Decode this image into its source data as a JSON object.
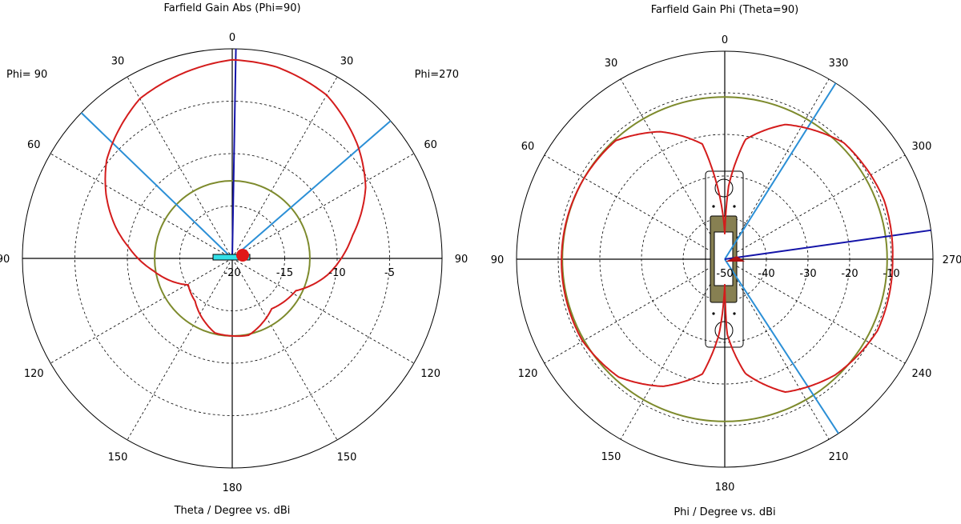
{
  "colors": {
    "gain_curve": "#d41c1c",
    "reference_circle": "#7d8a2c",
    "main_lobe": "#1414a8",
    "beamwidth_lines": "#2b8fd6",
    "grid": "#000000",
    "device_body": "#878052"
  },
  "chart_data": [
    {
      "type": "polar-line",
      "title": "Farfield Gain Abs (Phi=90)",
      "xlabel": "Theta / Degree vs. dBi",
      "side_labels": {
        "left": "Phi= 90",
        "right": "Phi=270"
      },
      "angle_unit": "degree",
      "angle_labels_left": [
        "0",
        "30",
        "60",
        "90",
        "120",
        "150",
        "180"
      ],
      "angle_labels_right": [
        "30",
        "60",
        "90",
        "120",
        "150"
      ],
      "radial_ticks": [
        "-20",
        "-15",
        "-10",
        "-5"
      ],
      "rlim": [
        -20,
        0
      ],
      "grid": true,
      "series": [
        {
          "side": "Phi=90",
          "points": [
            [
              0,
              -1.05
            ],
            [
              30,
              -2.4
            ],
            [
              52,
              -4.8
            ],
            [
              63,
              -6.5
            ],
            [
              75,
              -8.5
            ],
            [
              84,
              -10.1
            ],
            [
              99,
              -12.4
            ],
            [
              121,
              -15.1
            ],
            [
              139,
              -14.6
            ],
            [
              167,
              -12.7
            ],
            [
              180,
              -12.6
            ]
          ]
        },
        {
          "side": "Phi=270",
          "points": [
            [
              0,
              -1.05
            ],
            [
              13,
              -1.25
            ],
            [
              30,
              -2.0
            ],
            [
              48,
              -3.9
            ],
            [
              62,
              -5.6
            ],
            [
              79,
              -8.3
            ],
            [
              100,
              -10.8
            ],
            [
              117,
              -13.2
            ],
            [
              142,
              -13.9
            ],
            [
              168,
              -12.5
            ],
            [
              180,
              -12.6
            ]
          ]
        }
      ],
      "reference_circle_dbi": -12.6,
      "main_lobe_direction_deg": 1,
      "beamwidth_directions_deg": {
        "phi90_side": 46,
        "phi270_side": 49
      }
    },
    {
      "type": "polar-line",
      "title": "Farfield Gain Phi (Theta=90)",
      "xlabel": "Phi / Degree vs. dBi",
      "angle_unit": "degree",
      "angle_labels": [
        "0",
        "30",
        "60",
        "90",
        "120",
        "150",
        "180",
        "210",
        "240",
        "270",
        "300",
        "330"
      ],
      "radial_ticks": [
        "-50",
        "-40",
        "-30",
        "-20",
        "-10"
      ],
      "rlim": [
        -50,
        0
      ],
      "grid": true,
      "series": [
        {
          "points": [
            [
              0,
              -44
            ],
            [
              5.7,
              -32.6
            ],
            [
              11,
              -21.8
            ],
            [
              27,
              -15.6
            ],
            [
              42.6,
              -11.3
            ],
            [
              61,
              -11
            ],
            [
              90,
              -10.8
            ],
            [
              119.7,
              -10.6
            ],
            [
              138,
              -11.9
            ],
            [
              154,
              -16
            ],
            [
              169,
              -21.9
            ],
            [
              175.7,
              -32
            ],
            [
              180,
              -44
            ],
            [
              181.7,
              -32.2
            ],
            [
              190.2,
              -22.1
            ],
            [
              204.5,
              -14.9
            ],
            [
              223.4,
              -11.6
            ],
            [
              245,
              -9.5
            ],
            [
              270,
              -9.7
            ],
            [
              290.5,
              -9.2
            ],
            [
              314.4,
              -10
            ],
            [
              335.8,
              -14.5
            ],
            [
              350.2,
              -20.8
            ],
            [
              357,
              -32.4
            ],
            [
              360,
              -44
            ]
          ]
        }
      ],
      "reference_circle_dbi": -11.0,
      "main_lobe_direction_deg": 278,
      "beamwidth_directions_deg": [
        327.8,
        213.1
      ]
    }
  ]
}
